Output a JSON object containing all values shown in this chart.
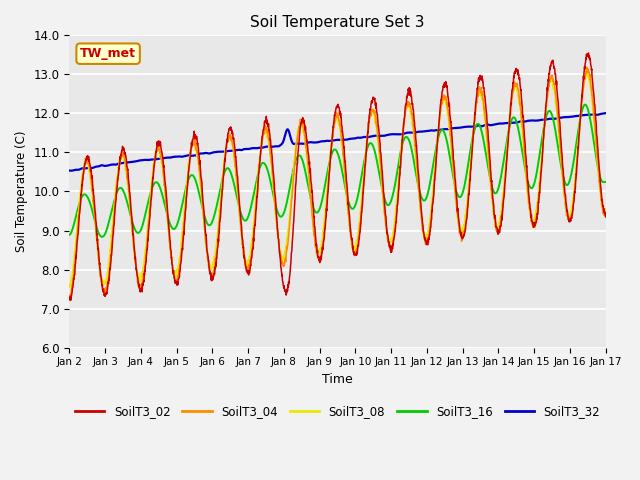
{
  "title": "Soil Temperature Set 3",
  "xlabel": "Time",
  "ylabel": "Soil Temperature (C)",
  "ylim": [
    6.0,
    14.0
  ],
  "yticks": [
    6.0,
    7.0,
    8.0,
    9.0,
    10.0,
    11.0,
    12.0,
    13.0,
    14.0
  ],
  "xtick_labels": [
    "Jan 2",
    "Jan 3",
    "Jan 4",
    "Jan 5",
    "Jan 6",
    "Jan 7",
    "Jan 8",
    "Jan 9",
    "Jan 10",
    "Jan 11",
    "Jan 12",
    "Jan 13",
    "Jan 14",
    "Jan 15",
    "Jan 16",
    "Jan 17"
  ],
  "annotation_text": "TW_met",
  "colors": {
    "SoilT3_02": "#cc0000",
    "SoilT3_04": "#ff8c00",
    "SoilT3_08": "#e8e800",
    "SoilT3_16": "#00cc00",
    "SoilT3_32": "#0000cc"
  },
  "bg_color": "#e8e8e8",
  "fig_bg": "#f2f2f2",
  "grid_color": "#ffffff"
}
